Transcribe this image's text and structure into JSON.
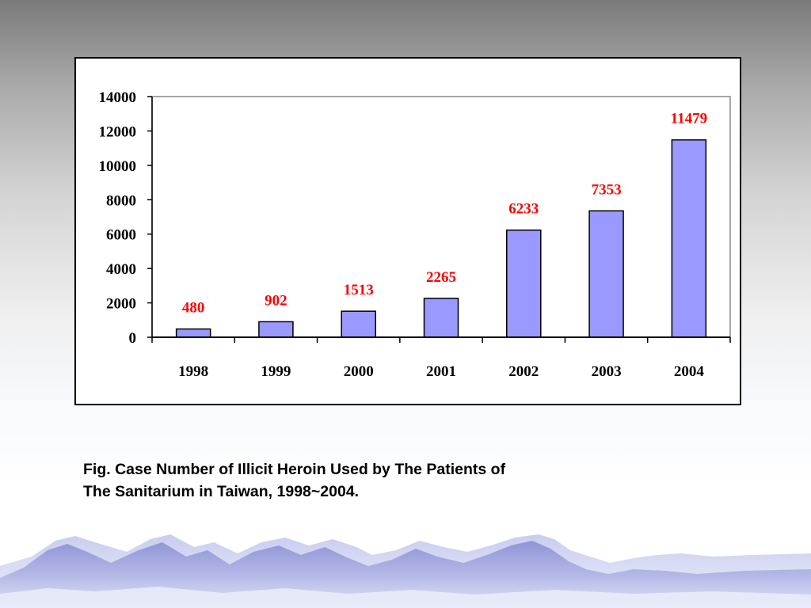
{
  "colors": {
    "bar_fill": "#9999ff",
    "bar_stroke": "#000000",
    "data_label": "#ff0000",
    "axis": "#000000"
  },
  "caption": {
    "line1": "Fig.  Case Number of Illicit Heroin Used by The Patients of",
    "line2": "The Sanitarium in Taiwan, 1998~2004."
  },
  "chart_data": {
    "type": "bar",
    "categories": [
      "1998",
      "1999",
      "2000",
      "2001",
      "2002",
      "2003",
      "2004"
    ],
    "values": [
      480,
      902,
      1513,
      2265,
      6233,
      7353,
      11479
    ],
    "data_labels": [
      "480",
      "902",
      "1513",
      "2265",
      "6233",
      "7353",
      "11479"
    ],
    "y_ticks": [
      "0",
      "2000",
      "4000",
      "6000",
      "8000",
      "10000",
      "12000",
      "14000"
    ],
    "ylim": [
      0,
      14000
    ],
    "title": "",
    "xlabel": "",
    "ylabel": "",
    "legend": "none",
    "grid": false
  }
}
